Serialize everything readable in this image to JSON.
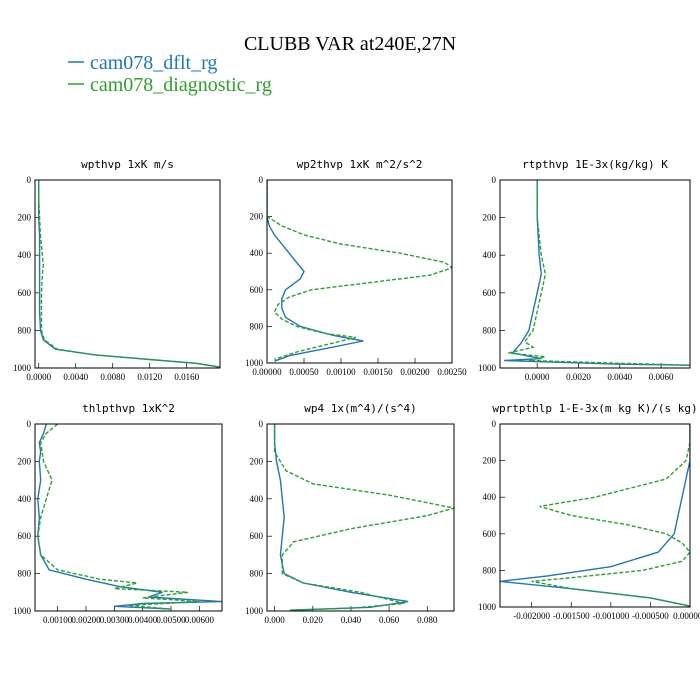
{
  "figure": {
    "title": "CLUBB VAR at240E,27N",
    "legend": [
      {
        "name": "cam078_dflt_rg",
        "color": "#1f77b4"
      },
      {
        "name": "cam078_diagnostic_rg",
        "color": "#2ca02c"
      }
    ]
  },
  "chart_data": [
    {
      "type": "line",
      "title": "wpthvp   1xK m/s",
      "xlim": [
        -0.0004,
        0.0196
      ],
      "ylim": [
        1000,
        0
      ],
      "xticks": [
        "0.0000",
        "0.0040",
        "0.0080",
        "0.0120",
        "0.0160"
      ],
      "yticks": [
        "0",
        "200",
        "400",
        "600",
        "800",
        "1000"
      ],
      "series": [
        {
          "name": "cam078_dflt_rg",
          "color": "#1f77b4",
          "dash": false,
          "points": [
            [
              0.0,
              0
            ],
            [
              0.0,
              100
            ],
            [
              0.0,
              200
            ],
            [
              0.0001,
              300
            ],
            [
              0.0001,
              400
            ],
            [
              0.0001,
              500
            ],
            [
              0.0001,
              600
            ],
            [
              0.0001,
              700
            ],
            [
              0.0002,
              800
            ],
            [
              0.0005,
              850
            ],
            [
              0.0018,
              900
            ],
            [
              0.006,
              930
            ],
            [
              0.012,
              955
            ],
            [
              0.017,
              975
            ],
            [
              0.0196,
              995
            ]
          ]
        },
        {
          "name": "cam078_diagnostic_rg",
          "color": "#2ca02c",
          "dash": true,
          "points": [
            [
              0.0,
              0
            ],
            [
              0.0,
              100
            ],
            [
              0.0001,
              200
            ],
            [
              0.0002,
              300
            ],
            [
              0.0004,
              400
            ],
            [
              0.0005,
              450
            ],
            [
              0.0004,
              500
            ],
            [
              0.0003,
              600
            ],
            [
              0.0003,
              700
            ],
            [
              0.0003,
              800
            ],
            [
              0.0006,
              850
            ],
            [
              0.002,
              900
            ],
            [
              0.006,
              930
            ],
            [
              0.012,
              955
            ],
            [
              0.017,
              975
            ],
            [
              0.0196,
              995
            ]
          ]
        }
      ]
    },
    {
      "type": "line",
      "title": "wp2thvp   1xK m^2/s^2",
      "xlim": [
        0,
        0.0025
      ],
      "ylim": [
        1000,
        0
      ],
      "xticks": [
        "0.00000",
        "0.00050",
        "0.00100",
        "0.00150",
        "0.00200",
        "0.00250"
      ],
      "yticks": [
        "0",
        "200",
        "400",
        "600",
        "800",
        "1000"
      ],
      "series": [
        {
          "name": "cam078_dflt_rg",
          "color": "#1f77b4",
          "dash": false,
          "points": [
            [
              0.0,
              0
            ],
            [
              0.0,
              200
            ],
            [
              3e-05,
              250
            ],
            [
              0.0001,
              300
            ],
            [
              0.0002,
              350
            ],
            [
              0.0003,
              400
            ],
            [
              0.0004,
              450
            ],
            [
              0.0005,
              500
            ],
            [
              0.00045,
              540
            ],
            [
              0.00035,
              570
            ],
            [
              0.00025,
              600
            ],
            [
              0.0002,
              650
            ],
            [
              0.0002,
              700
            ],
            [
              0.00025,
              750
            ],
            [
              0.00045,
              800
            ],
            [
              0.0009,
              850
            ],
            [
              0.0013,
              880
            ],
            [
              0.0008,
              920
            ],
            [
              0.0003,
              960
            ],
            [
              0.0001,
              990
            ]
          ]
        },
        {
          "name": "cam078_diagnostic_rg",
          "color": "#2ca02c",
          "dash": true,
          "points": [
            [
              0.0,
              0
            ],
            [
              0.0,
              200
            ],
            [
              0.0002,
              250
            ],
            [
              0.0005,
              300
            ],
            [
              0.001,
              350
            ],
            [
              0.0018,
              400
            ],
            [
              0.0024,
              450
            ],
            [
              0.0025,
              480
            ],
            [
              0.0022,
              520
            ],
            [
              0.0014,
              560
            ],
            [
              0.0006,
              600
            ],
            [
              0.0003,
              640
            ],
            [
              0.00015,
              680
            ],
            [
              0.0001,
              720
            ],
            [
              0.0002,
              760
            ],
            [
              0.0004,
              800
            ],
            [
              0.0008,
              840
            ],
            [
              0.0012,
              860
            ],
            [
              0.0008,
              900
            ],
            [
              0.0004,
              940
            ],
            [
              0.0001,
              980
            ]
          ]
        }
      ]
    },
    {
      "type": "line",
      "title": "rtpthvp   1E-3x(kg/kg) K",
      "xlim": [
        -0.0018,
        0.0074
      ],
      "ylim": [
        1000,
        0
      ],
      "xticks": [
        "0.0000",
        "0.0020",
        "0.0040",
        "0.0060"
      ],
      "yticks": [
        "0",
        "200",
        "400",
        "600",
        "800",
        "1000"
      ],
      "series": [
        {
          "name": "cam078_dflt_rg",
          "color": "#1f77b4",
          "dash": false,
          "points": [
            [
              0.0,
              0
            ],
            [
              0.0,
              200
            ],
            [
              0.0001,
              400
            ],
            [
              0.0002,
              500
            ],
            [
              0.0,
              600
            ],
            [
              -0.0002,
              700
            ],
            [
              -0.0004,
              800
            ],
            [
              -0.0008,
              870
            ],
            [
              -0.0012,
              920
            ],
            [
              0.0002,
              950
            ],
            [
              -0.0016,
              960
            ],
            [
              0.004,
              980
            ],
            [
              0.0074,
              985
            ]
          ]
        },
        {
          "name": "cam078_diagnostic_rg",
          "color": "#2ca02c",
          "dash": true,
          "points": [
            [
              0.0,
              0
            ],
            [
              0.0,
              200
            ],
            [
              0.0002,
              400
            ],
            [
              0.0004,
              500
            ],
            [
              0.0002,
              600
            ],
            [
              0.0,
              700
            ],
            [
              -0.0002,
              800
            ],
            [
              -0.0006,
              860
            ],
            [
              -0.0002,
              890
            ],
            [
              -0.0014,
              920
            ],
            [
              0.0004,
              940
            ],
            [
              -0.0004,
              960
            ],
            [
              0.004,
              975
            ],
            [
              0.0074,
              985
            ]
          ]
        }
      ]
    },
    {
      "type": "line",
      "title": "thlpthvp   1xK^2",
      "xlim": [
        0.0002,
        0.0068
      ],
      "ylim": [
        1000,
        0
      ],
      "xticks": [
        "0.00100",
        "0.00200",
        "0.00300",
        "0.00400",
        "0.00500",
        "0.00600"
      ],
      "yticks": [
        "0",
        "200",
        "400",
        "600",
        "800",
        "1000"
      ],
      "series": [
        {
          "name": "cam078_dflt_rg",
          "color": "#1f77b4",
          "dash": false,
          "points": [
            [
              0.0006,
              0
            ],
            [
              0.0005,
              50
            ],
            [
              0.00035,
              100
            ],
            [
              0.0004,
              150
            ],
            [
              0.00035,
              200
            ],
            [
              0.0004,
              300
            ],
            [
              0.0003,
              400
            ],
            [
              0.00035,
              500
            ],
            [
              0.0003,
              600
            ],
            [
              0.0004,
              700
            ],
            [
              0.0007,
              780
            ],
            [
              0.002,
              830
            ],
            [
              0.0032,
              870
            ],
            [
              0.0047,
              900
            ],
            [
              0.0042,
              925
            ],
            [
              0.0068,
              950
            ],
            [
              0.004,
              960
            ],
            [
              0.003,
              975
            ],
            [
              0.005,
              990
            ]
          ]
        },
        {
          "name": "cam078_diagnostic_rg",
          "color": "#2ca02c",
          "dash": true,
          "points": [
            [
              0.001,
              0
            ],
            [
              0.0006,
              50
            ],
            [
              0.0004,
              100
            ],
            [
              0.0005,
              200
            ],
            [
              0.0008,
              300
            ],
            [
              0.0006,
              400
            ],
            [
              0.0004,
              500
            ],
            [
              0.0003,
              600
            ],
            [
              0.0004,
              700
            ],
            [
              0.001,
              780
            ],
            [
              0.0025,
              830
            ],
            [
              0.0038,
              850
            ],
            [
              0.003,
              880
            ],
            [
              0.0056,
              900
            ],
            [
              0.004,
              930
            ],
            [
              0.006,
              950
            ],
            [
              0.0035,
              970
            ],
            [
              0.005,
              990
            ]
          ]
        }
      ]
    },
    {
      "type": "line",
      "title": "wp4   1x(m^4)/(s^4)",
      "xlim": [
        -0.004,
        0.094
      ],
      "ylim": [
        1000,
        0
      ],
      "xticks": [
        "0.000",
        "0.020",
        "0.040",
        "0.060",
        "0.080"
      ],
      "yticks": [
        "0",
        "200",
        "400",
        "600",
        "800",
        "1000"
      ],
      "series": [
        {
          "name": "cam078_dflt_rg",
          "color": "#1f77b4",
          "dash": false,
          "points": [
            [
              0.0,
              0
            ],
            [
              0.0,
              100
            ],
            [
              0.001,
              200
            ],
            [
              0.003,
              300
            ],
            [
              0.004,
              400
            ],
            [
              0.005,
              500
            ],
            [
              0.004,
              600
            ],
            [
              0.003,
              700
            ],
            [
              0.005,
              800
            ],
            [
              0.015,
              850
            ],
            [
              0.04,
              900
            ],
            [
              0.07,
              950
            ],
            [
              0.05,
              980
            ],
            [
              0.01,
              995
            ]
          ]
        },
        {
          "name": "cam078_diagnostic_rg",
          "color": "#2ca02c",
          "dash": true,
          "points": [
            [
              0.0,
              0
            ],
            [
              0.0,
              100
            ],
            [
              0.0,
              150
            ],
            [
              0.006,
              250
            ],
            [
              0.02,
              320
            ],
            [
              0.06,
              380
            ],
            [
              0.094,
              450
            ],
            [
              0.08,
              490
            ],
            [
              0.04,
              560
            ],
            [
              0.01,
              630
            ],
            [
              0.004,
              700
            ],
            [
              0.004,
              800
            ],
            [
              0.015,
              850
            ],
            [
              0.045,
              900
            ],
            [
              0.068,
              960
            ],
            [
              0.04,
              985
            ],
            [
              0.008,
              995
            ]
          ]
        }
      ]
    },
    {
      "type": "line",
      "title": "wprtpthlp   1-E-3x(m kg K)/(s kg)",
      "xlim": [
        -0.0024,
        0.0
      ],
      "ylim": [
        1000,
        0
      ],
      "xticks": [
        "-0.002000",
        "-0.001500",
        "-0.001000",
        "-0.000500",
        "0.000000"
      ],
      "yticks": [
        "0",
        "200",
        "400",
        "600",
        "800",
        "1000"
      ],
      "series": [
        {
          "name": "cam078_dflt_rg",
          "color": "#1f77b4",
          "dash": false,
          "points": [
            [
              0.0,
              0
            ],
            [
              0.0,
              100
            ],
            [
              0.0,
              200
            ],
            [
              -5e-05,
              300
            ],
            [
              -0.0001,
              400
            ],
            [
              -0.00015,
              500
            ],
            [
              -0.0002,
              600
            ],
            [
              -0.0004,
              700
            ],
            [
              -0.001,
              780
            ],
            [
              -0.0018,
              830
            ],
            [
              -0.0024,
              860
            ],
            [
              -0.0015,
              900
            ],
            [
              -0.0005,
              950
            ],
            [
              0.0,
              995
            ]
          ]
        },
        {
          "name": "cam078_diagnostic_rg",
          "color": "#2ca02c",
          "dash": true,
          "points": [
            [
              0.0,
              0
            ],
            [
              0.0,
              100
            ],
            [
              -5e-05,
              200
            ],
            [
              -0.0003,
              300
            ],
            [
              -0.0012,
              400
            ],
            [
              -0.0019,
              450
            ],
            [
              -0.0015,
              500
            ],
            [
              -0.0008,
              550
            ],
            [
              -0.0003,
              600
            ],
            [
              -0.0001,
              650
            ],
            [
              0.0,
              700
            ],
            [
              -0.0001,
              750
            ],
            [
              -0.0006,
              800
            ],
            [
              -0.0015,
              840
            ],
            [
              -0.002,
              860
            ],
            [
              -0.0015,
              900
            ],
            [
              -0.0005,
              950
            ],
            [
              0.0,
              995
            ]
          ]
        }
      ]
    }
  ]
}
